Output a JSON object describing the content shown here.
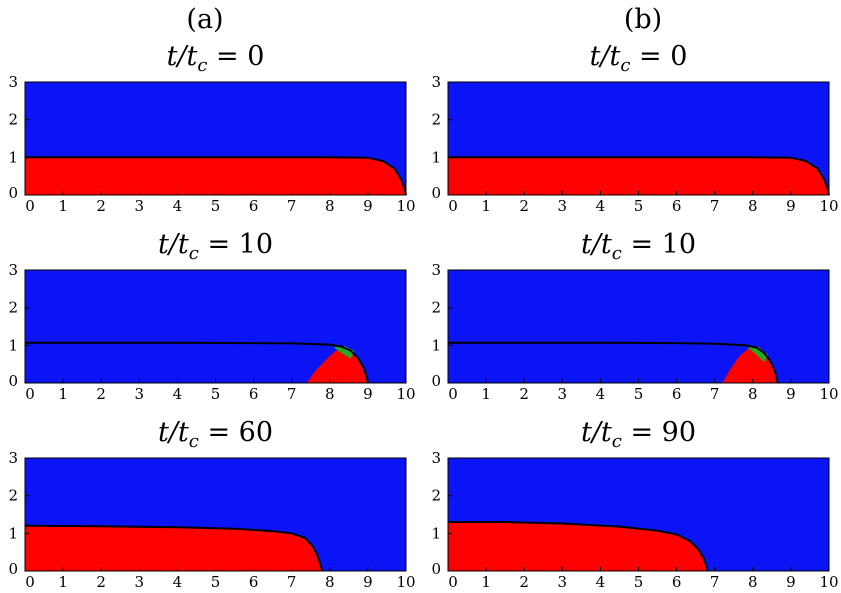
{
  "colors": {
    "outer": "#0a14f5",
    "inner": "#ff0000",
    "interface": "#000000",
    "mixed": "#22aa22"
  },
  "columns": [
    {
      "label": "(a)"
    },
    {
      "label": "(b)"
    }
  ],
  "chart_data": [
    {
      "type": "heatmap",
      "column": "(a)",
      "title": "t/t_c = 0",
      "title_parts": [
        "t/t",
        "c",
        " = 0"
      ],
      "xlim": [
        0,
        10
      ],
      "ylim": [
        0,
        3
      ],
      "xticks": [
        "0",
        "1",
        "2",
        "3",
        "4",
        "5",
        "6",
        "7",
        "8",
        "9",
        "10"
      ],
      "yticks": [
        "0",
        "1",
        "2",
        "3"
      ],
      "interface": [
        [
          0,
          1.0
        ],
        [
          2,
          1.0
        ],
        [
          4,
          1.0
        ],
        [
          6,
          1.0
        ],
        [
          8,
          1.0
        ],
        [
          9,
          0.99
        ],
        [
          9.4,
          0.9
        ],
        [
          9.7,
          0.7
        ],
        [
          9.88,
          0.4
        ],
        [
          9.97,
          0.15
        ],
        [
          10.0,
          0
        ]
      ],
      "mixed_regions": []
    },
    {
      "type": "heatmap",
      "column": "(b)",
      "title": "t/t_c = 0",
      "title_parts": [
        "t/t",
        "c",
        " = 0"
      ],
      "xlim": [
        0,
        10
      ],
      "ylim": [
        0,
        3
      ],
      "xticks": [
        "0",
        "1",
        "2",
        "3",
        "4",
        "5",
        "6",
        "7",
        "8",
        "9",
        "10"
      ],
      "yticks": [
        "0",
        "1",
        "2",
        "3"
      ],
      "interface": [
        [
          0,
          1.0
        ],
        [
          2,
          1.0
        ],
        [
          4,
          1.0
        ],
        [
          6,
          1.0
        ],
        [
          8,
          1.0
        ],
        [
          9,
          0.99
        ],
        [
          9.4,
          0.9
        ],
        [
          9.7,
          0.7
        ],
        [
          9.88,
          0.4
        ],
        [
          9.97,
          0.15
        ],
        [
          10.0,
          0
        ]
      ],
      "mixed_regions": []
    },
    {
      "type": "heatmap",
      "column": "(a)",
      "title": "t/t_c = 10",
      "title_parts": [
        "t/t",
        "c",
        " = 10"
      ],
      "xlim": [
        0,
        10
      ],
      "ylim": [
        0,
        3
      ],
      "xticks": [
        "0",
        "1",
        "2",
        "3",
        "4",
        "5",
        "6",
        "7",
        "8",
        "9",
        "10"
      ],
      "yticks": [
        "0",
        "1",
        "2",
        "3"
      ],
      "interface": [
        [
          0,
          1.07
        ],
        [
          2,
          1.07
        ],
        [
          4,
          1.07
        ],
        [
          6,
          1.06
        ],
        [
          7,
          1.05
        ],
        [
          8,
          1.02
        ],
        [
          8.3,
          0.97
        ],
        [
          8.55,
          0.86
        ],
        [
          8.75,
          0.65
        ],
        [
          8.9,
          0.4
        ],
        [
          8.97,
          0.15
        ],
        [
          9.0,
          0
        ]
      ],
      "inner_region": [
        [
          7.4,
          0
        ],
        [
          7.6,
          0.3
        ],
        [
          7.9,
          0.62
        ],
        [
          8.15,
          0.85
        ],
        [
          8.35,
          0.92
        ],
        [
          8.55,
          0.85
        ],
        [
          8.72,
          0.65
        ],
        [
          8.85,
          0.4
        ],
        [
          8.95,
          0.15
        ],
        [
          9.0,
          0
        ]
      ],
      "mixed_regions": [
        [
          [
            8.1,
            0.95
          ],
          [
            8.4,
            0.98
          ],
          [
            8.65,
            0.85
          ],
          [
            8.55,
            0.65
          ],
          [
            8.3,
            0.8
          ]
        ]
      ]
    },
    {
      "type": "heatmap",
      "column": "(b)",
      "title": "t/t_c = 10",
      "title_parts": [
        "t/t",
        "c",
        " = 10"
      ],
      "xlim": [
        0,
        10
      ],
      "ylim": [
        0,
        3
      ],
      "xticks": [
        "0",
        "1",
        "2",
        "3",
        "4",
        "5",
        "6",
        "7",
        "8",
        "9",
        "10"
      ],
      "yticks": [
        "0",
        "1",
        "2",
        "3"
      ],
      "interface": [
        [
          0,
          1.07
        ],
        [
          2,
          1.07
        ],
        [
          4,
          1.07
        ],
        [
          6,
          1.06
        ],
        [
          7,
          1.04
        ],
        [
          7.8,
          1.0
        ],
        [
          8.1,
          0.94
        ],
        [
          8.3,
          0.8
        ],
        [
          8.45,
          0.6
        ],
        [
          8.57,
          0.35
        ],
        [
          8.63,
          0.12
        ],
        [
          8.65,
          0
        ]
      ],
      "inner_region": [
        [
          7.2,
          0
        ],
        [
          7.4,
          0.35
        ],
        [
          7.65,
          0.72
        ],
        [
          7.9,
          0.92
        ],
        [
          8.15,
          0.9
        ],
        [
          8.35,
          0.7
        ],
        [
          8.5,
          0.45
        ],
        [
          8.6,
          0.2
        ],
        [
          8.65,
          0
        ]
      ],
      "mixed_regions": [
        [
          [
            7.85,
            0.95
          ],
          [
            8.15,
            0.96
          ],
          [
            8.4,
            0.75
          ],
          [
            8.3,
            0.55
          ],
          [
            8.1,
            0.75
          ]
        ]
      ]
    },
    {
      "type": "heatmap",
      "column": "(a)",
      "title": "t/t_c = 60",
      "title_parts": [
        "t/t",
        "c",
        " = 60"
      ],
      "xlim": [
        0,
        10
      ],
      "ylim": [
        0,
        3
      ],
      "xticks": [
        "0",
        "1",
        "2",
        "3",
        "4",
        "5",
        "6",
        "7",
        "8",
        "9",
        "10"
      ],
      "yticks": [
        "0",
        "1",
        "2",
        "3"
      ],
      "interface": [
        [
          0,
          1.2
        ],
        [
          2,
          1.19
        ],
        [
          4,
          1.16
        ],
        [
          5.5,
          1.12
        ],
        [
          6.5,
          1.06
        ],
        [
          7.0,
          1.0
        ],
        [
          7.35,
          0.88
        ],
        [
          7.55,
          0.66
        ],
        [
          7.68,
          0.4
        ],
        [
          7.76,
          0.15
        ],
        [
          7.8,
          0
        ]
      ],
      "mixed_regions": []
    },
    {
      "type": "heatmap",
      "column": "(b)",
      "title": "t/t_c = 90",
      "title_parts": [
        "t/t",
        "c",
        " = 90"
      ],
      "xlim": [
        0,
        10
      ],
      "ylim": [
        0,
        3
      ],
      "xticks": [
        "0",
        "1",
        "2",
        "3",
        "4",
        "5",
        "6",
        "7",
        "8",
        "9",
        "10"
      ],
      "yticks": [
        "0",
        "1",
        "2",
        "3"
      ],
      "interface": [
        [
          0,
          1.3
        ],
        [
          1.5,
          1.3
        ],
        [
          3,
          1.26
        ],
        [
          4.5,
          1.18
        ],
        [
          5.5,
          1.07
        ],
        [
          6.0,
          0.97
        ],
        [
          6.35,
          0.8
        ],
        [
          6.55,
          0.6
        ],
        [
          6.7,
          0.36
        ],
        [
          6.78,
          0.14
        ],
        [
          6.82,
          0
        ]
      ],
      "mixed_regions": []
    }
  ]
}
